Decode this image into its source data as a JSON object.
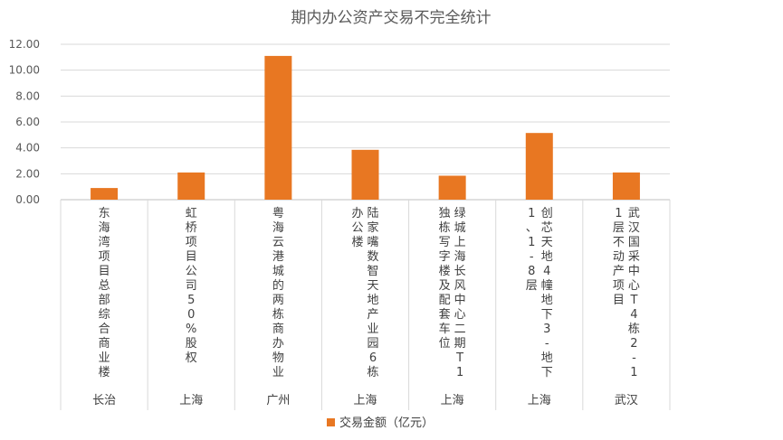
{
  "chart_data": {
    "type": "bar",
    "title": "期内办公资产交易不完全统计",
    "categories": [
      "东海湾项目总部综合商业楼",
      "虹桥项目公司50%股权",
      "粤海云港城的两栋商办物业",
      "陆家嘴数智天地产业园6栋办公楼",
      "绿城上海长风中心二期T1独栋写字楼及配套车位",
      "创芯天地4幢地下3-地下1、1-8层",
      "武汉国采中心T4栋2-11层不动产项目"
    ],
    "cities": [
      "长治",
      "上海",
      "广州",
      "上海",
      "上海",
      "上海",
      "武汉"
    ],
    "series": [
      {
        "name": "交易金额（亿元）",
        "values": [
          0.9,
          2.1,
          11.1,
          3.85,
          1.85,
          5.15,
          2.1
        ]
      }
    ],
    "ylim": [
      0,
      12
    ],
    "yticks": [
      "0.00",
      "2.00",
      "4.00",
      "6.00",
      "8.00",
      "10.00",
      "12.00"
    ],
    "grid": true,
    "legend_position": "bottom",
    "colors": {
      "bar": "#E87722"
    }
  }
}
